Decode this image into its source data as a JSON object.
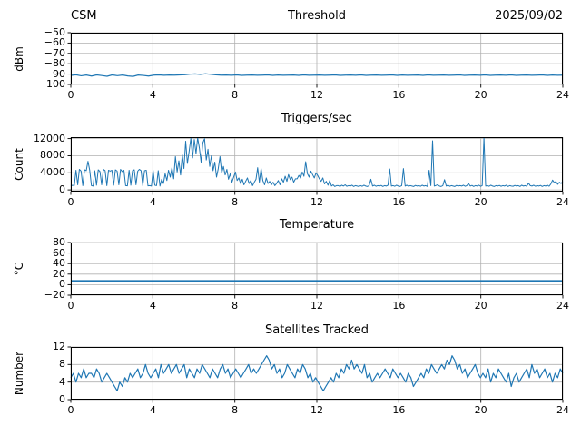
{
  "colors": {
    "line": "#1f77b4",
    "grid": "#b0b0b0",
    "axes": "#000000"
  },
  "chart_data": [
    {
      "type": "line",
      "title": "Threshold",
      "title_left": "CSM",
      "title_right": "2025/09/02",
      "ylabel": "dBm",
      "xlim": [
        0,
        24
      ],
      "ylim": [
        -100,
        -50
      ],
      "xticks": [
        0,
        4,
        8,
        12,
        16,
        20,
        24
      ],
      "yticks": [
        -50,
        -60,
        -70,
        -80,
        -90,
        -100
      ],
      "grid": true,
      "line_color": "#1f77b4",
      "values": [
        -91.2,
        -90.7,
        -91.6,
        -90.9,
        -91.9,
        -90.8,
        -91.4,
        -92.1,
        -90.8,
        -91.5,
        -90.9,
        -91.8,
        -92.2,
        -90.9,
        -91.3,
        -91.9,
        -91.0,
        -90.8,
        -91.1,
        -90.9,
        -91.0,
        -90.8,
        -90.6,
        -90.1,
        -89.8,
        -90.3,
        -89.7,
        -90.2,
        -90.7,
        -91.0,
        -90.9,
        -91.1,
        -90.8,
        -91.2,
        -91.0,
        -90.9,
        -91.1,
        -91.0,
        -90.8,
        -91.2,
        -90.9,
        -91.1,
        -91.0,
        -90.9,
        -91.2,
        -90.8,
        -91.1,
        -91.0,
        -90.9,
        -91.1,
        -91.0,
        -90.8,
        -91.2,
        -91.0,
        -90.9,
        -91.1,
        -90.8,
        -91.2,
        -91.0,
        -90.9,
        -91.1,
        -91.0,
        -90.8,
        -91.2,
        -90.9,
        -91.1,
        -91.0,
        -90.9,
        -91.2,
        -90.8,
        -91.1,
        -91.0,
        -90.9,
        -91.1,
        -91.0,
        -90.8,
        -91.2,
        -91.0,
        -90.9,
        -91.1,
        -90.8,
        -91.2,
        -91.0,
        -90.9,
        -91.1,
        -90.8,
        -91.2,
        -91.0,
        -90.9,
        -91.1,
        -91.0,
        -90.8,
        -91.2,
        -90.9,
        -91.1,
        -91.0
      ]
    },
    {
      "type": "line",
      "title": "Triggers/sec",
      "ylabel": "Count",
      "xlim": [
        0,
        24
      ],
      "ylim": [
        -400,
        12350
      ],
      "xticks": [
        0,
        4,
        8,
        12,
        16,
        20,
        24
      ],
      "yticks": [
        0,
        4000,
        8000,
        12000
      ],
      "grid": true,
      "line_color": "#1f77b4",
      "values": [
        900,
        1100,
        1000,
        4600,
        1200,
        4800,
        4400,
        1000,
        4700,
        4500,
        6700,
        4600,
        1000,
        900,
        4500,
        1100,
        4700,
        4300,
        1200,
        4800,
        4500,
        1000,
        4600,
        4400,
        4600,
        1100,
        4700,
        4400,
        1200,
        4800,
        4300,
        4600,
        1000,
        950,
        4600,
        1100,
        4500,
        4700,
        1200,
        4400,
        4800,
        4500,
        1000,
        4500,
        4600,
        950,
        1000,
        900,
        4600,
        1100,
        1000,
        4500,
        900,
        2500,
        1500,
        3800,
        2200,
        4600,
        3000,
        5200,
        2600,
        7800,
        4200,
        6800,
        3500,
        8200,
        5000,
        11400,
        6200,
        9000,
        12100,
        7500,
        11800,
        8500,
        12200,
        9800,
        6500,
        11000,
        12000,
        7000,
        9500,
        5500,
        8000,
        4500,
        6500,
        3000,
        5000,
        7800,
        4000,
        5500,
        3500,
        4800,
        2500,
        3800,
        1800,
        3000,
        4200,
        2200,
        2800,
        1500,
        2500,
        1200,
        2000,
        2800,
        1500,
        2200,
        1000,
        1800,
        2500,
        5200,
        1800,
        5000,
        2200,
        1200,
        2800,
        1500,
        2000,
        1200,
        1800,
        1000,
        1500,
        2200,
        1200,
        2600,
        1800,
        3200,
        2000,
        3600,
        2400,
        3000,
        1800,
        2600,
        2600,
        3400,
        2800,
        4200,
        3200,
        6600,
        3800,
        3000,
        4400,
        3600,
        2800,
        4000,
        3400,
        2600,
        2000,
        2800,
        1400,
        2000,
        1100,
        2200,
        900,
        1200,
        800,
        1000,
        1000,
        800,
        1100,
        900,
        1200,
        850,
        1000,
        900,
        1100,
        800,
        1000,
        900,
        800,
        1000,
        850,
        1100,
        900,
        800,
        1000,
        2500,
        900,
        1100,
        850,
        1000,
        900,
        1050,
        800,
        1000,
        900,
        1100,
        4900,
        900,
        1000,
        850,
        1100,
        900,
        800,
        1000,
        5000,
        900,
        1100,
        850,
        1000,
        900,
        800,
        1050,
        900,
        1000,
        850,
        1100,
        900,
        1000,
        800,
        4600,
        1000,
        11500,
        900,
        1050,
        1200,
        900,
        800,
        1000,
        2400,
        900,
        1100,
        850,
        1000,
        900,
        800,
        1050,
        900,
        1000,
        900,
        1100,
        850,
        1000,
        1500,
        900,
        1050,
        800,
        1000,
        900,
        1100,
        850,
        1000,
        12250,
        900,
        1000,
        850,
        1100,
        900,
        800,
        1000,
        900,
        1050,
        850,
        1000,
        900,
        1100,
        800,
        1000,
        900,
        850,
        1050,
        900,
        1000,
        800,
        1100,
        900,
        1000,
        850,
        1600,
        1000,
        900,
        1100,
        850,
        1000,
        900,
        1050,
        800,
        1000,
        900,
        1100,
        850,
        1400,
        2300,
        1700,
        2000,
        1300,
        1800,
        1500,
        2000
      ]
    },
    {
      "type": "line",
      "title": "Temperature",
      "ylabel": "°C",
      "xlim": [
        0,
        24
      ],
      "ylim": [
        -20,
        80
      ],
      "xticks": [
        0,
        4,
        8,
        12,
        16,
        20,
        24
      ],
      "yticks": [
        -20,
        0,
        20,
        40,
        60,
        80
      ],
      "grid": true,
      "line_color": "#1f77b4",
      "values": [
        6.5,
        6.5
      ]
    },
    {
      "type": "line",
      "title": "Satellites Tracked",
      "ylabel": "Number",
      "xlim": [
        0,
        24
      ],
      "ylim": [
        0,
        12
      ],
      "xticks": [
        0,
        4,
        8,
        12,
        16,
        20,
        24
      ],
      "yticks": [
        0,
        4,
        8,
        12
      ],
      "grid": true,
      "line_color": "#1f77b4",
      "values": [
        5,
        6,
        4,
        6,
        5,
        7,
        5,
        6,
        6,
        5,
        7,
        6,
        4,
        5,
        6,
        5,
        4,
        3,
        2,
        4,
        3,
        5,
        4,
        6,
        5,
        6,
        7,
        5,
        6,
        8,
        6,
        5,
        6,
        7,
        5,
        8,
        6,
        7,
        8,
        6,
        7,
        8,
        6,
        7,
        8,
        5,
        7,
        6,
        5,
        7,
        6,
        8,
        7,
        6,
        5,
        7,
        6,
        5,
        7,
        8,
        6,
        7,
        5,
        6,
        7,
        6,
        5,
        6,
        7,
        8,
        6,
        7,
        6,
        7,
        8,
        9,
        10,
        9,
        7,
        8,
        6,
        7,
        5,
        6,
        8,
        7,
        6,
        5,
        7,
        6,
        8,
        7,
        5,
        6,
        4,
        5,
        4,
        3,
        2,
        3,
        4,
        5,
        4,
        6,
        5,
        7,
        6,
        8,
        7,
        9,
        7,
        8,
        7,
        6,
        8,
        5,
        6,
        4,
        5,
        6,
        5,
        6,
        7,
        6,
        5,
        7,
        6,
        5,
        6,
        5,
        4,
        6,
        5,
        3,
        4,
        5,
        6,
        5,
        7,
        6,
        8,
        7,
        6,
        7,
        8,
        7,
        9,
        8,
        10,
        9,
        7,
        8,
        6,
        7,
        5,
        6,
        7,
        8,
        6,
        5,
        6,
        5,
        7,
        4,
        6,
        5,
        7,
        6,
        5,
        4,
        6,
        3,
        5,
        6,
        4,
        5,
        6,
        7,
        5,
        8,
        6,
        7,
        5,
        6,
        7,
        5,
        6,
        4,
        6,
        5,
        7,
        6
      ]
    }
  ]
}
